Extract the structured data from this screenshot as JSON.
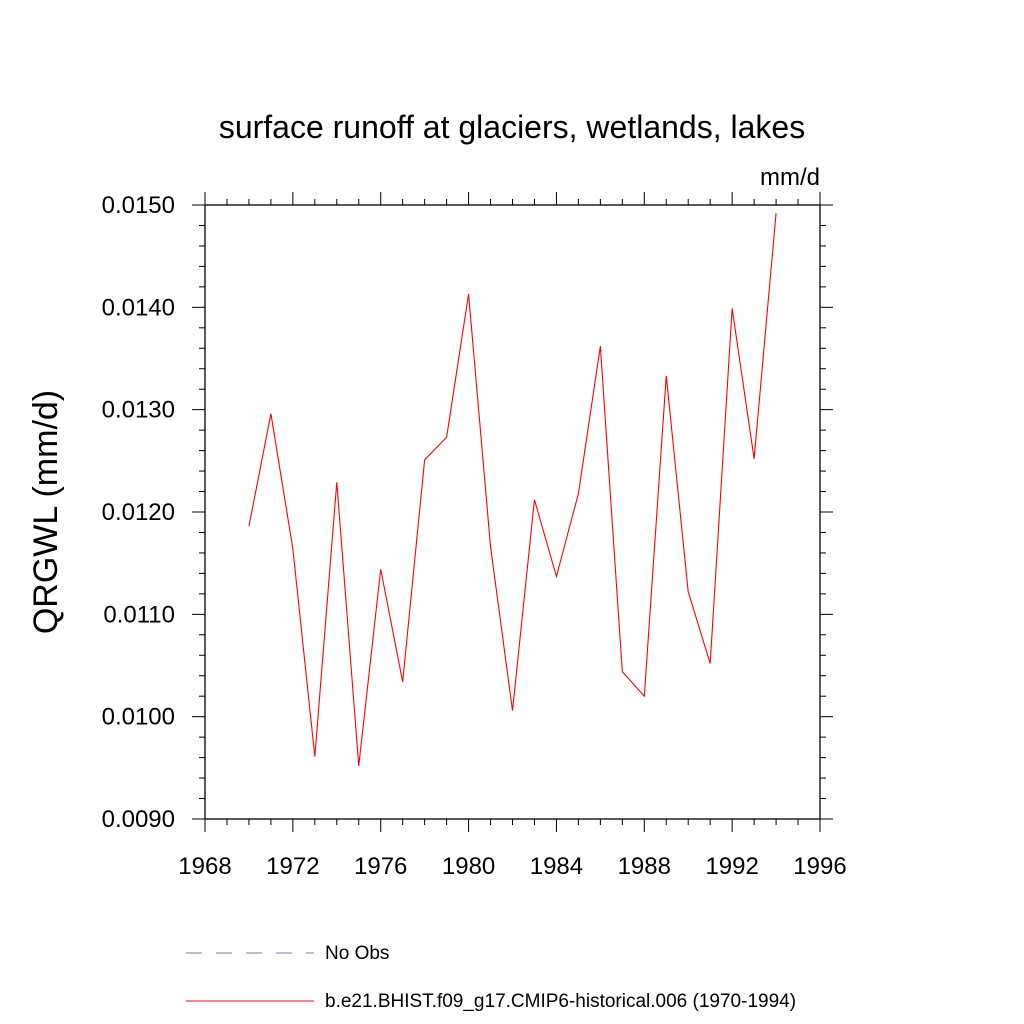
{
  "chart_data": {
    "type": "line",
    "title": "surface runoff at glaciers, wetlands, lakes",
    "units": "mm/d",
    "ylabel": "QRGWL  (mm/d)",
    "xlabel": "",
    "xlim": [
      1968,
      1996
    ],
    "ylim": [
      0.009,
      0.015
    ],
    "x_ticks": [
      "1968",
      "1972",
      "1976",
      "1980",
      "1984",
      "1988",
      "1992",
      "1996"
    ],
    "y_ticks": [
      "0.0090",
      "0.0100",
      "0.0110",
      "0.0120",
      "0.0130",
      "0.0140",
      "0.0150"
    ],
    "grid": false,
    "legend_position": "bottom",
    "series": [
      {
        "name": "b.e21.BHIST.f09_g17.CMIP6-historical.006 (1970-1994)",
        "color": "#ff0000",
        "style": "solid",
        "x": [
          1970,
          1971,
          1972,
          1973,
          1974,
          1975,
          1976,
          1977,
          1978,
          1979,
          1980,
          1981,
          1982,
          1983,
          1984,
          1985,
          1986,
          1987,
          1988,
          1989,
          1990,
          1991,
          1992,
          1993,
          1994
        ],
        "y": [
          0.01186,
          0.01296,
          0.01164,
          0.00961,
          0.01229,
          0.00952,
          0.01144,
          0.01034,
          0.01251,
          0.01273,
          0.01413,
          0.01166,
          0.01006,
          0.01212,
          0.01137,
          0.01218,
          0.01362,
          0.01044,
          0.0102,
          0.01333,
          0.01122,
          0.01052,
          0.01399,
          0.01252,
          0.01492
        ]
      }
    ],
    "legend": [
      {
        "label": "No Obs",
        "color": "#7777cc",
        "style": "dashed"
      },
      {
        "label": "b.e21.BHIST.f09_g17.CMIP6-historical.006 (1970-1994)",
        "color": "#ff0000",
        "style": "solid"
      }
    ]
  }
}
